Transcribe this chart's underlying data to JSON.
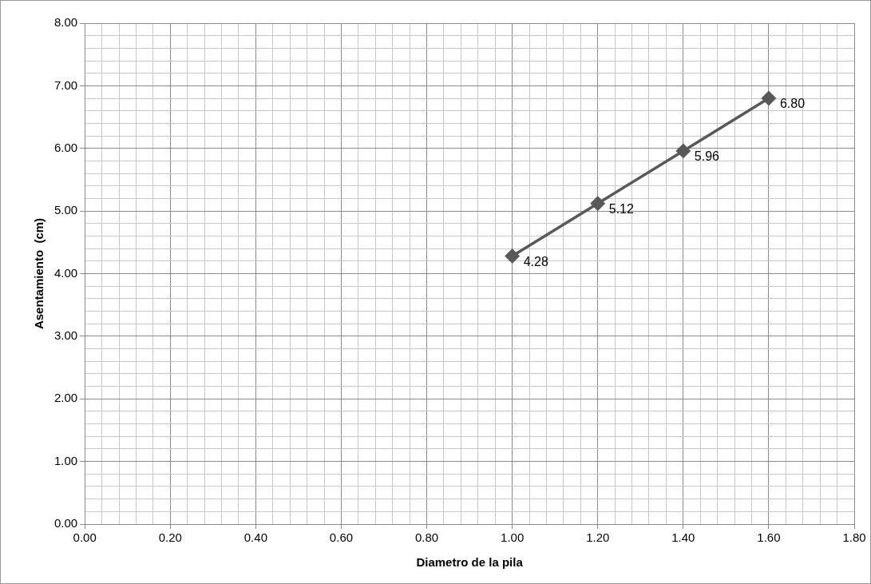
{
  "chart_data": {
    "type": "line",
    "xlabel": "Diametro de la pila",
    "ylabel": "Asentamiento  (cm)",
    "x": [
      1.0,
      1.2,
      1.4,
      1.6
    ],
    "series": [
      {
        "color": "#595959",
        "values": [
          4.28,
          5.12,
          5.96,
          6.8
        ],
        "value_labels": [
          "4.28",
          "5.12",
          "5.96",
          "6.80"
        ]
      }
    ],
    "marker": "diamond",
    "line_style": "solid",
    "grid": true,
    "legend": false,
    "xlim": [
      0,
      1.8
    ],
    "ylim": [
      0,
      8
    ],
    "xticks": [
      {
        "value": 0,
        "label": "0.00"
      },
      {
        "value": 0.04,
        "label": null
      },
      {
        "value": 0.08,
        "label": null
      },
      {
        "value": 0.12,
        "label": null
      },
      {
        "value": 0.16,
        "label": null
      },
      {
        "value": 0.2,
        "label": "0.20"
      },
      {
        "value": 0.24,
        "label": null
      },
      {
        "value": 0.28,
        "label": null
      },
      {
        "value": 0.32,
        "label": null
      },
      {
        "value": 0.36,
        "label": null
      },
      {
        "value": 0.4,
        "label": "0.40"
      },
      {
        "value": 0.44,
        "label": null
      },
      {
        "value": 0.48,
        "label": null
      },
      {
        "value": 0.52,
        "label": null
      },
      {
        "value": 0.56,
        "label": null
      },
      {
        "value": 0.6,
        "label": "0.60"
      },
      {
        "value": 0.64,
        "label": null
      },
      {
        "value": 0.68,
        "label": null
      },
      {
        "value": 0.72,
        "label": null
      },
      {
        "value": 0.76,
        "label": null
      },
      {
        "value": 0.8,
        "label": "0.80"
      },
      {
        "value": 0.84,
        "label": null
      },
      {
        "value": 0.88,
        "label": null
      },
      {
        "value": 0.92,
        "label": null
      },
      {
        "value": 0.96,
        "label": null
      },
      {
        "value": 1,
        "label": "1.00"
      },
      {
        "value": 1.04,
        "label": null
      },
      {
        "value": 1.08,
        "label": null
      },
      {
        "value": 1.12,
        "label": null
      },
      {
        "value": 1.16,
        "label": null
      },
      {
        "value": 1.2,
        "label": "1.20"
      },
      {
        "value": 1.24,
        "label": null
      },
      {
        "value": 1.28,
        "label": null
      },
      {
        "value": 1.32,
        "label": null
      },
      {
        "value": 1.36,
        "label": null
      },
      {
        "value": 1.4,
        "label": "1.40"
      },
      {
        "value": 1.44,
        "label": null
      },
      {
        "value": 1.48,
        "label": null
      },
      {
        "value": 1.52,
        "label": null
      },
      {
        "value": 1.56,
        "label": null
      },
      {
        "value": 1.6,
        "label": "1.60"
      },
      {
        "value": 1.64,
        "label": null
      },
      {
        "value": 1.68,
        "label": null
      },
      {
        "value": 1.72,
        "label": null
      },
      {
        "value": 1.76,
        "label": null
      },
      {
        "value": 1.8,
        "label": "1.80"
      }
    ],
    "yticks": [
      {
        "value": 0,
        "label": "0.00"
      },
      {
        "value": 0.2,
        "label": null
      },
      {
        "value": 0.4,
        "label": null
      },
      {
        "value": 0.6,
        "label": null
      },
      {
        "value": 0.8,
        "label": null
      },
      {
        "value": 1,
        "label": "1.00"
      },
      {
        "value": 1.2,
        "label": null
      },
      {
        "value": 1.4,
        "label": null
      },
      {
        "value": 1.6,
        "label": null
      },
      {
        "value": 1.8,
        "label": null
      },
      {
        "value": 2,
        "label": "2.00"
      },
      {
        "value": 2.2,
        "label": null
      },
      {
        "value": 2.4,
        "label": null
      },
      {
        "value": 2.6,
        "label": null
      },
      {
        "value": 2.8,
        "label": null
      },
      {
        "value": 3,
        "label": "3.00"
      },
      {
        "value": 3.2,
        "label": null
      },
      {
        "value": 3.4,
        "label": null
      },
      {
        "value": 3.6,
        "label": null
      },
      {
        "value": 3.8,
        "label": null
      },
      {
        "value": 4,
        "label": "4.00"
      },
      {
        "value": 4.2,
        "label": null
      },
      {
        "value": 4.4,
        "label": null
      },
      {
        "value": 4.6,
        "label": null
      },
      {
        "value": 4.8,
        "label": null
      },
      {
        "value": 5,
        "label": "5.00"
      },
      {
        "value": 5.2,
        "label": null
      },
      {
        "value": 5.4,
        "label": null
      },
      {
        "value": 5.6,
        "label": null
      },
      {
        "value": 5.8,
        "label": null
      },
      {
        "value": 6,
        "label": "6.00"
      },
      {
        "value": 6.2,
        "label": null
      },
      {
        "value": 6.4,
        "label": null
      },
      {
        "value": 6.6,
        "label": null
      },
      {
        "value": 6.8,
        "label": null
      },
      {
        "value": 7,
        "label": "7.00"
      },
      {
        "value": 7.2,
        "label": null
      },
      {
        "value": 7.4,
        "label": null
      },
      {
        "value": 7.6,
        "label": null
      },
      {
        "value": 7.8,
        "label": null
      },
      {
        "value": 8,
        "label": "8.00"
      }
    ]
  }
}
